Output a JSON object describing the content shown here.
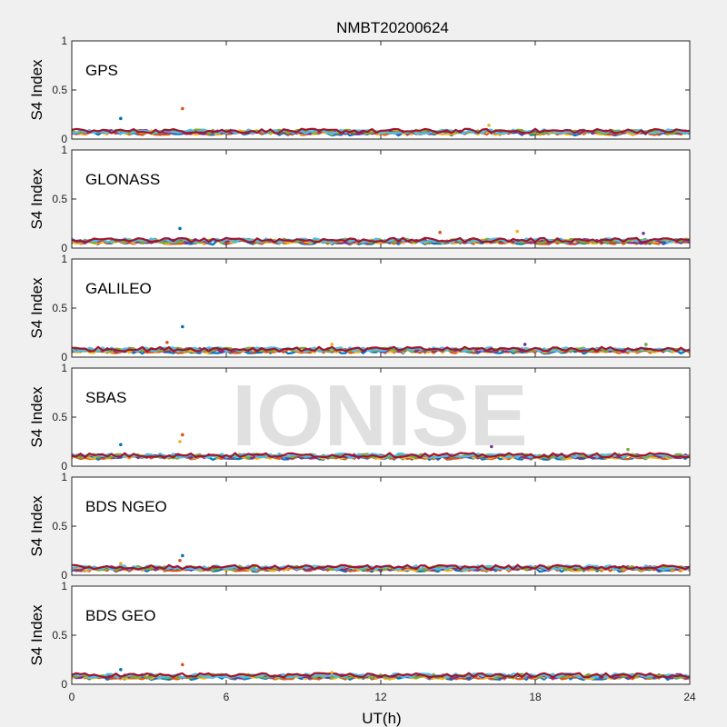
{
  "figure": {
    "title": "NMBT20200624",
    "xlabel": "UT(h)",
    "watermark": "IONISE"
  },
  "chart_data": {
    "type": "scatter",
    "title": "NMBT20200624",
    "xlabel": "UT(h)",
    "ylabel": "S4 Index",
    "xlim": [
      0,
      24
    ],
    "ylim": [
      0,
      1
    ],
    "xticks": [
      0,
      6,
      12,
      18,
      24
    ],
    "yticks": [
      0,
      0.5,
      1
    ],
    "panels": [
      {
        "label": "GPS",
        "baseline": 0.07,
        "spikes": [
          {
            "x": 1.9,
            "y": 0.21
          },
          {
            "x": 4.3,
            "y": 0.31
          },
          {
            "x": 16.2,
            "y": 0.14
          }
        ]
      },
      {
        "label": "GLONASS",
        "baseline": 0.07,
        "spikes": [
          {
            "x": 4.2,
            "y": 0.2
          },
          {
            "x": 14.3,
            "y": 0.16
          },
          {
            "x": 17.3,
            "y": 0.17
          },
          {
            "x": 22.2,
            "y": 0.15
          }
        ]
      },
      {
        "label": "GALILEO",
        "baseline": 0.07,
        "spikes": [
          {
            "x": 4.3,
            "y": 0.31
          },
          {
            "x": 3.7,
            "y": 0.15
          },
          {
            "x": 10.1,
            "y": 0.13
          },
          {
            "x": 17.6,
            "y": 0.13
          },
          {
            "x": 22.3,
            "y": 0.13
          }
        ]
      },
      {
        "label": "SBAS",
        "baseline": 0.1,
        "spikes": [
          {
            "x": 1.9,
            "y": 0.22
          },
          {
            "x": 4.3,
            "y": 0.32
          },
          {
            "x": 4.2,
            "y": 0.25
          },
          {
            "x": 16.3,
            "y": 0.2
          },
          {
            "x": 21.6,
            "y": 0.17
          }
        ]
      },
      {
        "label": "BDS NGEO",
        "baseline": 0.07,
        "spikes": [
          {
            "x": 4.3,
            "y": 0.2
          },
          {
            "x": 4.2,
            "y": 0.15
          },
          {
            "x": 1.9,
            "y": 0.12
          }
        ]
      },
      {
        "label": "BDS GEO",
        "baseline": 0.08,
        "spikes": [
          {
            "x": 1.9,
            "y": 0.15
          },
          {
            "x": 4.3,
            "y": 0.2
          },
          {
            "x": 10.1,
            "y": 0.12
          }
        ]
      }
    ]
  }
}
